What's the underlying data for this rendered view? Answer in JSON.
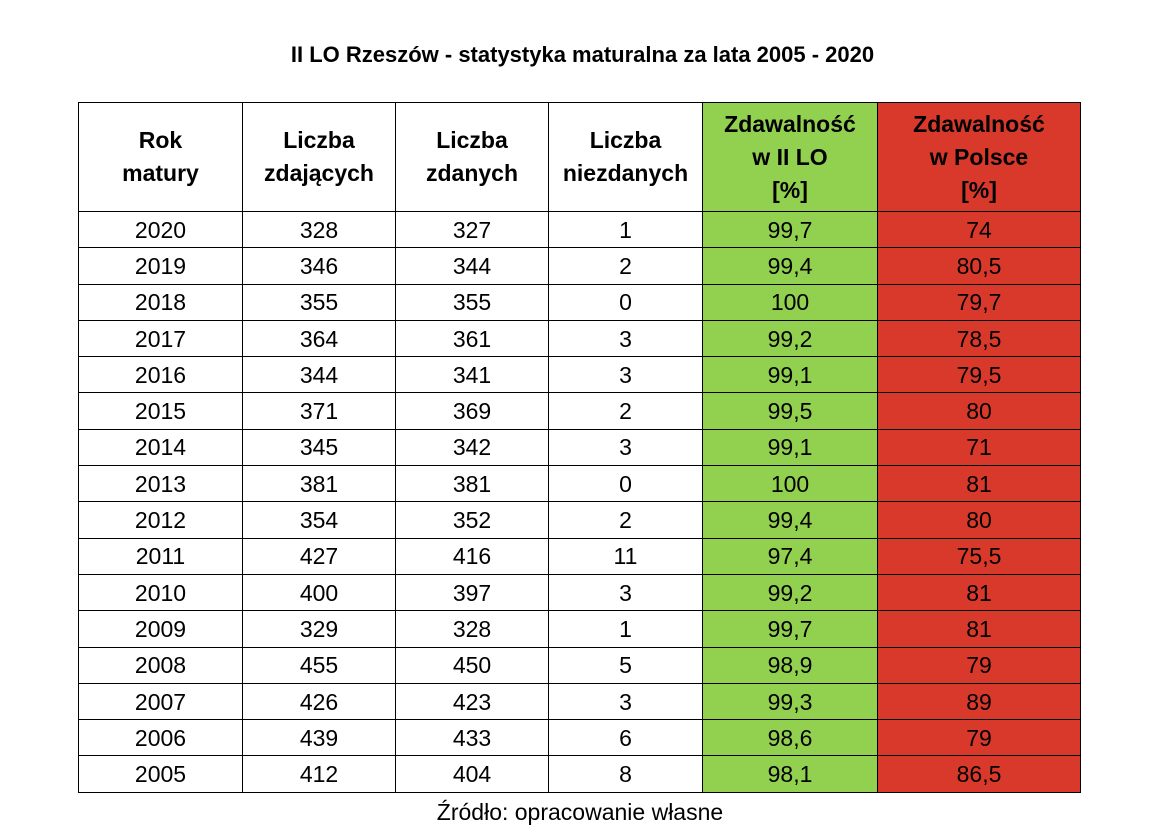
{
  "title": "II LO Rzeszów - statystyka maturalna za lata 2005 - 2020",
  "source": "Źródło: opracowanie własne",
  "colors": {
    "green": "#92d050",
    "red": "#d9392b"
  },
  "chart_data": {
    "type": "table",
    "title": "II LO Rzeszów - statystyka maturalna za lata 2005 - 2020",
    "columns": [
      [
        "Rok",
        "matury"
      ],
      [
        "Liczba",
        "zdających"
      ],
      [
        "Liczba",
        "zdanych"
      ],
      [
        "Liczba",
        "niezdanych"
      ],
      [
        "Zdawalność",
        "w II LO",
        "[%]"
      ],
      [
        "Zdawalność",
        "w Polsce",
        "[%]"
      ]
    ],
    "rows": [
      [
        "2020",
        "328",
        "327",
        "1",
        "99,7",
        "74"
      ],
      [
        "2019",
        "346",
        "344",
        "2",
        "99,4",
        "80,5"
      ],
      [
        "2018",
        "355",
        "355",
        "0",
        "100",
        "79,7"
      ],
      [
        "2017",
        "364",
        "361",
        "3",
        "99,2",
        "78,5"
      ],
      [
        "2016",
        "344",
        "341",
        "3",
        "99,1",
        "79,5"
      ],
      [
        "2015",
        "371",
        "369",
        "2",
        "99,5",
        "80"
      ],
      [
        "2014",
        "345",
        "342",
        "3",
        "99,1",
        "71"
      ],
      [
        "2013",
        "381",
        "381",
        "0",
        "100",
        "81"
      ],
      [
        "2012",
        "354",
        "352",
        "2",
        "99,4",
        "80"
      ],
      [
        "2011",
        "427",
        "416",
        "11",
        "97,4",
        "75,5"
      ],
      [
        "2010",
        "400",
        "397",
        "3",
        "99,2",
        "81"
      ],
      [
        "2009",
        "329",
        "328",
        "1",
        "99,7",
        "81"
      ],
      [
        "2008",
        "455",
        "450",
        "5",
        "98,9",
        "79"
      ],
      [
        "2007",
        "426",
        "423",
        "3",
        "99,3",
        "89"
      ],
      [
        "2006",
        "439",
        "433",
        "6",
        "98,6",
        "79"
      ],
      [
        "2005",
        "412",
        "404",
        "8",
        "98,1",
        "86,5"
      ]
    ]
  }
}
